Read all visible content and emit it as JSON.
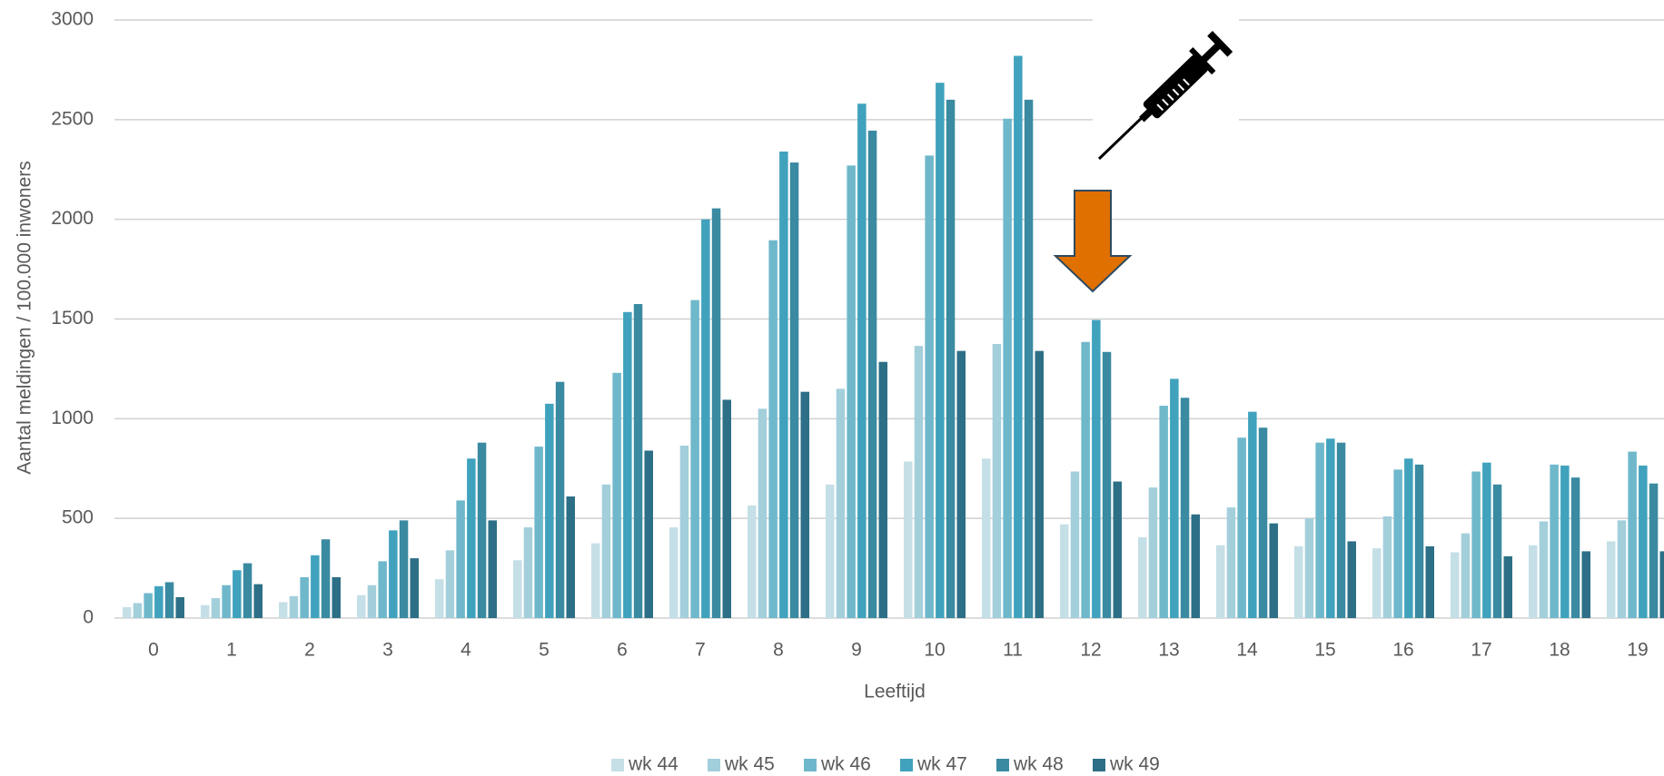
{
  "chart_data": {
    "type": "bar",
    "x_label": "Leeftijd",
    "y_label": "Aantal meldingen / 100.000 inwoners",
    "categories": [
      "0",
      "1",
      "2",
      "3",
      "4",
      "5",
      "6",
      "7",
      "8",
      "9",
      "10",
      "11",
      "12",
      "13",
      "14",
      "15",
      "16",
      "17",
      "18",
      "19"
    ],
    "series": [
      {
        "name": "wk 44",
        "color": "#c5dfe7",
        "values": [
          55,
          65,
          80,
          115,
          195,
          290,
          375,
          455,
          565,
          670,
          785,
          800,
          470,
          405,
          365,
          360,
          350,
          330,
          365,
          385
        ]
      },
      {
        "name": "wk 45",
        "color": "#a3cfdb",
        "values": [
          75,
          100,
          110,
          165,
          340,
          455,
          670,
          865,
          1050,
          1150,
          1365,
          1375,
          735,
          655,
          555,
          500,
          510,
          425,
          485,
          490
        ]
      },
      {
        "name": "wk 46",
        "color": "#6fb8cb",
        "values": [
          125,
          165,
          205,
          285,
          590,
          860,
          1230,
          1595,
          1895,
          2270,
          2320,
          2505,
          1385,
          1065,
          905,
          880,
          745,
          735,
          770,
          835
        ]
      },
      {
        "name": "wk 47",
        "color": "#40a2bd",
        "values": [
          160,
          240,
          315,
          440,
          800,
          1075,
          1535,
          2000,
          2340,
          2580,
          2685,
          2820,
          1495,
          1200,
          1035,
          900,
          800,
          780,
          765,
          765
        ]
      },
      {
        "name": "wk 48",
        "color": "#3a8aa1",
        "values": [
          180,
          275,
          395,
          490,
          880,
          1185,
          1575,
          2055,
          2285,
          2445,
          2600,
          2600,
          1335,
          1105,
          955,
          880,
          770,
          670,
          705,
          675
        ]
      },
      {
        "name": "wk 49",
        "color": "#2d6f86",
        "values": [
          105,
          170,
          205,
          300,
          490,
          610,
          840,
          1095,
          1135,
          1285,
          1340,
          1340,
          685,
          520,
          475,
          385,
          360,
          310,
          335,
          335
        ]
      }
    ],
    "ylim": [
      0,
      3000
    ],
    "yticks": [
      0,
      500,
      1000,
      1500,
      2000,
      2500,
      3000
    ],
    "grid": true,
    "legend": "bottom"
  }
}
